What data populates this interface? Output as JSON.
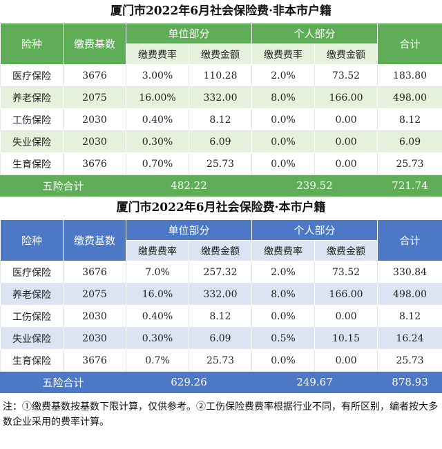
{
  "headers": {
    "type": "险种",
    "base": "缴费基数",
    "employer": "单位部分",
    "personal": "个人部分",
    "rate": "缴费费率",
    "amount": "缴费金额",
    "sum": "合计"
  },
  "tables": [
    {
      "title": "厦门市2022年6月社会保险费·非本市户籍",
      "rows": [
        {
          "type": "医疗保险",
          "base": "3676",
          "er_rate": "3.00%",
          "er_amt": "110.28",
          "p_rate": "2.0%",
          "p_amt": "73.52",
          "sum": "183.80"
        },
        {
          "type": "养老保险",
          "base": "2075",
          "er_rate": "16.00%",
          "er_amt": "332.00",
          "p_rate": "8.0%",
          "p_amt": "166.00",
          "sum": "498.00"
        },
        {
          "type": "工伤保险",
          "base": "2030",
          "er_rate": "0.40%",
          "er_amt": "8.12",
          "p_rate": "0.0%",
          "p_amt": "0.00",
          "sum": "8.12"
        },
        {
          "type": "失业保险",
          "base": "2030",
          "er_rate": "0.30%",
          "er_amt": "6.09",
          "p_rate": "0.0%",
          "p_amt": "0.00",
          "sum": "6.09"
        },
        {
          "type": "生育保险",
          "base": "3676",
          "er_rate": "0.70%",
          "er_amt": "25.73",
          "p_rate": "0.0%",
          "p_amt": "0.00",
          "sum": "25.73"
        }
      ],
      "total": {
        "label": "五险合计",
        "employer": "482.22",
        "personal": "239.52",
        "sum": "721.74"
      }
    },
    {
      "title": "厦门市2022年6月社会保险费·本市户籍",
      "rows": [
        {
          "type": "医疗保险",
          "base": "3676",
          "er_rate": "7.0%",
          "er_amt": "257.32",
          "p_rate": "2.0%",
          "p_amt": "73.52",
          "sum": "330.84"
        },
        {
          "type": "养老保险",
          "base": "2075",
          "er_rate": "16.0%",
          "er_amt": "332.00",
          "p_rate": "8.0%",
          "p_amt": "166.00",
          "sum": "498.00"
        },
        {
          "type": "工伤保险",
          "base": "2030",
          "er_rate": "0.40%",
          "er_amt": "8.12",
          "p_rate": "0.0%",
          "p_amt": "0.00",
          "sum": "8.12"
        },
        {
          "type": "失业保险",
          "base": "2030",
          "er_rate": "0.30%",
          "er_amt": "6.09",
          "p_rate": "0.5%",
          "p_amt": "10.15",
          "sum": "16.24"
        },
        {
          "type": "生育保险",
          "base": "3676",
          "er_rate": "0.7%",
          "er_amt": "25.73",
          "p_rate": "0.0%",
          "p_amt": "0.00",
          "sum": "25.73"
        }
      ],
      "total": {
        "label": "五险合计",
        "employer": "629.26",
        "personal": "249.67",
        "sum": "878.93"
      }
    }
  ],
  "note": "注：①缴费基数按基数下限计算，仅供参考。②工伤保险费费率根据行业不同，有所区别，编者按大多数企业采用的费率计算。"
}
